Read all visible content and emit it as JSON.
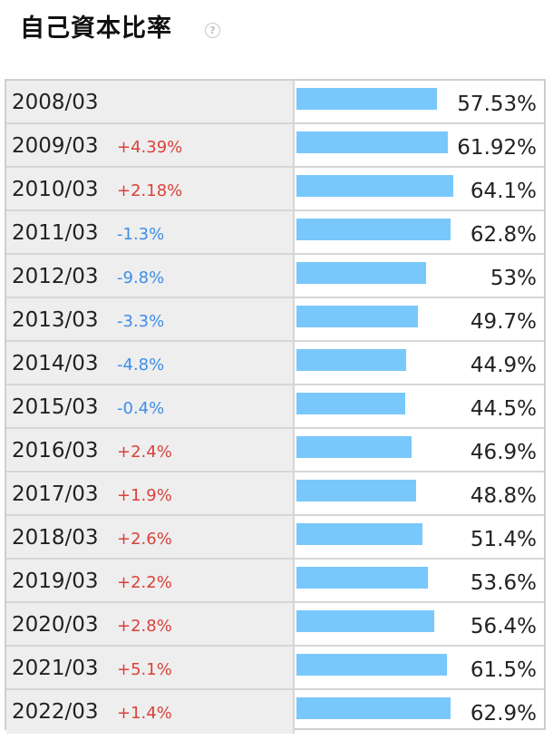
{
  "title": "自己資本比率",
  "help_icon": "?",
  "chart_data": {
    "type": "bar",
    "orientation": "horizontal",
    "categories": [
      "2008/03",
      "2009/03",
      "2010/03",
      "2011/03",
      "2012/03",
      "2013/03",
      "2014/03",
      "2015/03",
      "2016/03",
      "2017/03",
      "2018/03",
      "2019/03",
      "2020/03",
      "2021/03",
      "2022/03"
    ],
    "values": [
      57.53,
      61.92,
      64.1,
      62.8,
      53,
      49.7,
      44.9,
      44.5,
      46.9,
      48.8,
      51.4,
      53.6,
      56.4,
      61.5,
      62.9
    ],
    "value_labels": [
      "57.53%",
      "61.92%",
      "64.1%",
      "62.8%",
      "53%",
      "49.7%",
      "44.9%",
      "44.5%",
      "46.9%",
      "48.8%",
      "51.4%",
      "53.6%",
      "56.4%",
      "61.5%",
      "62.9%"
    ],
    "changes": [
      "",
      "+4.39%",
      "+2.18%",
      "-1.3%",
      "-9.8%",
      "-3.3%",
      "-4.8%",
      "-0.4%",
      "+2.4%",
      "+1.9%",
      "+2.6%",
      "+2.2%",
      "+2.8%",
      "+5.1%",
      "+1.4%"
    ],
    "bar_color": "#79c8fb",
    "positive_color": "#d9413a",
    "negative_color": "#3d8ee8"
  }
}
